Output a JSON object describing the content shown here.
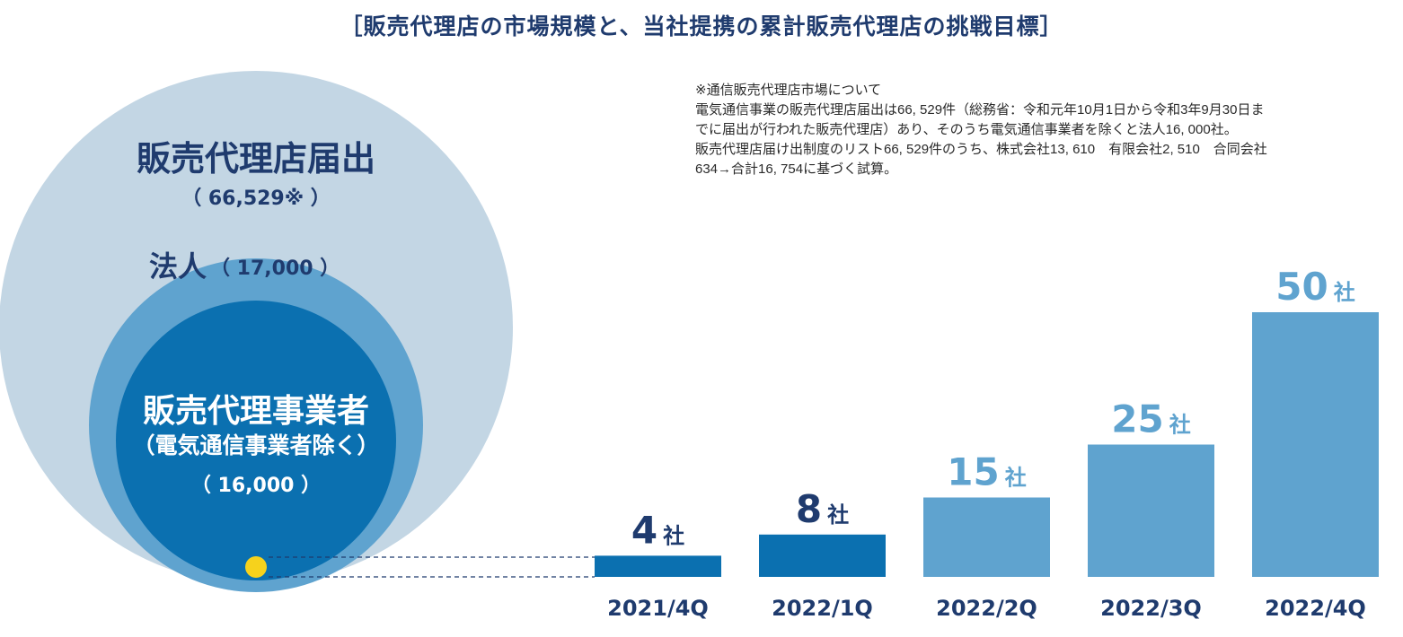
{
  "title": "［販売代理店の市場規模と、当社提携の累計販売代理店の挑戦目標］",
  "note": {
    "lines": [
      "※通信販売代理店市場について",
      "電気通信事業の販売代理店届出は66, 529件（総務省：令和元年10月1日から令和3年9月30日ま",
      "でに届出が行われた販売代理店）あり、そのうち電気通信事業者を除くと法人16, 000社。",
      "販売代理店届け出制度のリスト66, 529件のうち、株式会社13, 610　有限会社2, 510　合同会社",
      "634→合計16, 754に基づく試算。"
    ]
  },
  "market": {
    "outer": {
      "label": "販売代理店届出",
      "value": "（ 66,529※ ）"
    },
    "middle": {
      "label": "法人",
      "value": "（ 17,000 ）"
    },
    "inner": {
      "label": "販売代理事業者",
      "sublabel": "（電気通信事業者除く）",
      "value": "（ 16,000 ）"
    }
  },
  "colors": {
    "outer_circle": "#c3d6e4",
    "middle_circle": "#5fa3cf",
    "inner_circle": "#0b70b0",
    "dark_bar": "#0b70b0",
    "light_bar": "#5fa3cf",
    "dark_text": "#1f3b6e",
    "light_text": "#5fa3cf",
    "dot": "#f6d21c"
  },
  "chart_data": {
    "type": "bar",
    "categories": [
      "2021/4Q",
      "2022/1Q",
      "2022/2Q",
      "2022/3Q",
      "2022/4Q"
    ],
    "values": [
      4,
      8,
      15,
      25,
      50
    ],
    "value_labels": [
      "4",
      "8",
      "15",
      "25",
      "50"
    ],
    "unit": "社",
    "styles": [
      "dark",
      "dark",
      "light",
      "light",
      "light"
    ],
    "ylim": [
      0,
      50
    ]
  }
}
